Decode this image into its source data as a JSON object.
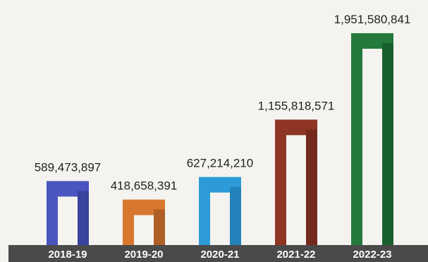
{
  "chart_data": {
    "type": "bar",
    "title": "",
    "xlabel": "",
    "ylabel": "",
    "ylim": [
      0,
      2000000000
    ],
    "grid": false,
    "categories": [
      "2018-19",
      "2019-20",
      "2020-21",
      "2021-22",
      "2022-23"
    ],
    "values": [
      589473897,
      418658391,
      627214210,
      1155818571,
      1951580841
    ],
    "value_labels": [
      "589,473,897",
      "418,658,391",
      "627,214,210",
      "1,155,818,571",
      "1,951,580,841"
    ],
    "colors": [
      "#4a55c0",
      "#d8772e",
      "#2d9bd8",
      "#8e3524",
      "#237a3c"
    ],
    "shade_colors": [
      "#2c3380",
      "#8e4a20",
      "#1a6ea0",
      "#5c2016",
      "#124a22"
    ]
  }
}
